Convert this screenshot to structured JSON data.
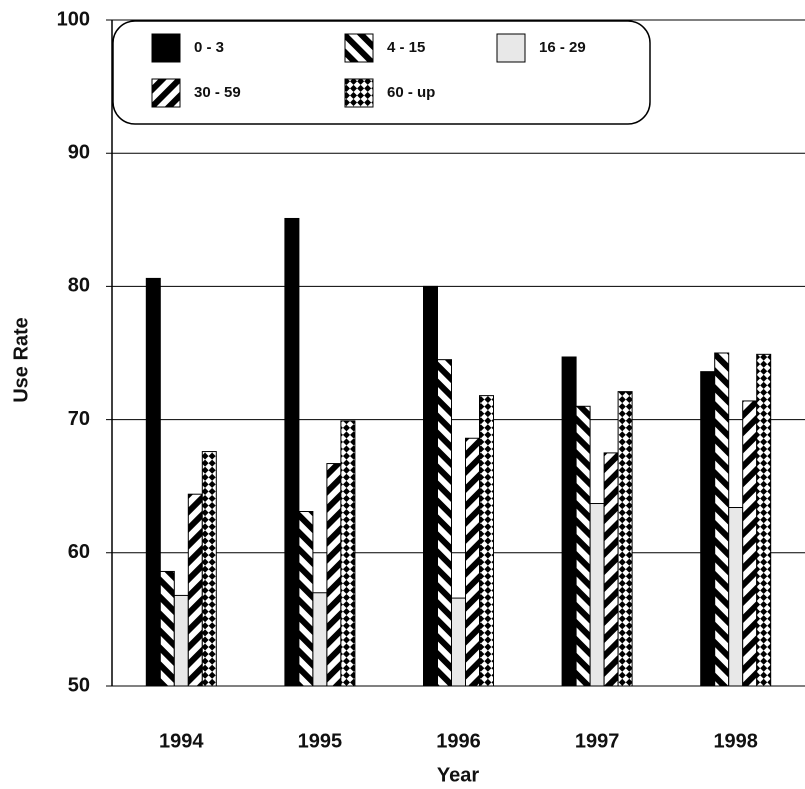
{
  "chart_data": {
    "type": "bar",
    "x_label": "Year",
    "y_label": "Use Rate",
    "categories": [
      "1994",
      "1995",
      "1996",
      "1997",
      "1998"
    ],
    "series": [
      {
        "name": "0 - 3",
        "color": "#000000",
        "pattern": "solid",
        "values": [
          80.6,
          85.1,
          80.0,
          74.7,
          73.6
        ]
      },
      {
        "name": "4 - 15",
        "color": "#000000",
        "pattern": "back-diagonal",
        "values": [
          58.6,
          63.1,
          74.5,
          71.0,
          75.0
        ]
      },
      {
        "name": "16 - 29",
        "color": "#e8e8e8",
        "pattern": "solid",
        "values": [
          56.8,
          57.0,
          56.6,
          63.7,
          63.4
        ]
      },
      {
        "name": "30 - 59",
        "color": "#000000",
        "pattern": "diagonal",
        "values": [
          64.4,
          66.7,
          68.6,
          67.5,
          71.4
        ]
      },
      {
        "name": "60 - up",
        "color": "#000000",
        "pattern": "cross",
        "values": [
          67.6,
          69.9,
          71.8,
          72.1,
          74.9
        ]
      }
    ],
    "ylim": [
      50,
      100
    ],
    "yticks": [
      50,
      60,
      70,
      80,
      90,
      100
    ],
    "grid": true
  }
}
